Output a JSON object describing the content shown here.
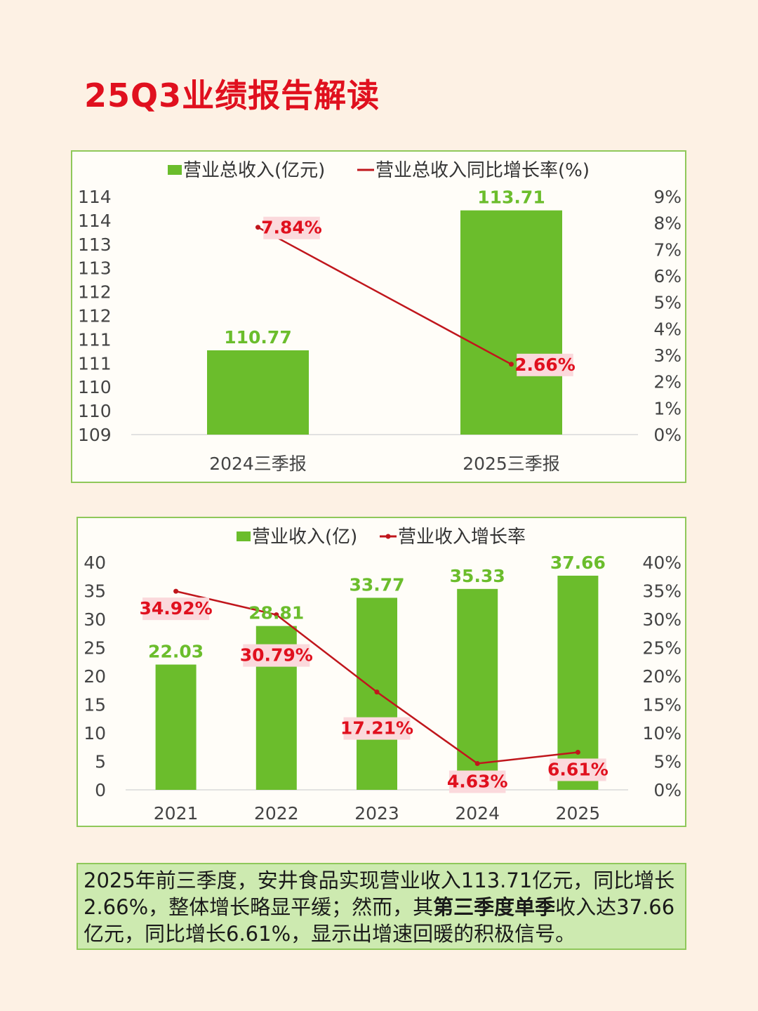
{
  "page": {
    "title": "25Q3业绩报告解读"
  },
  "colors": {
    "bar": "#6bbd2c",
    "line": "#c0161c",
    "bar_label": "#6bbd2c",
    "line_label": "#e0101e",
    "line_label_bg": "#fbd9dc",
    "title": "#e0101e"
  },
  "chart_data": [
    {
      "type": "bar",
      "legend": [
        "营业总收入(亿元)",
        "营业总收入同比增长率(%)"
      ],
      "categories": [
        "2024三季报",
        "2025三季报"
      ],
      "series": [
        {
          "name": "营业总收入(亿元)",
          "type": "bar",
          "values": [
            110.77,
            113.71
          ],
          "labels": [
            "110.77",
            "113.71"
          ]
        },
        {
          "name": "营业总收入同比增长率(%)",
          "type": "line",
          "values": [
            7.84,
            2.66
          ],
          "labels": [
            "7.84%",
            "2.66%"
          ]
        }
      ],
      "y_left": {
        "ticks": [
          "114",
          "114",
          "113",
          "113",
          "112",
          "112",
          "111",
          "111",
          "110",
          "110",
          "109"
        ],
        "ylim": [
          109,
          114
        ]
      },
      "y_right": {
        "ticks": [
          "9%",
          "8%",
          "7%",
          "6%",
          "5%",
          "4%",
          "3%",
          "2%",
          "1%",
          "0%"
        ],
        "ylim": [
          0,
          9
        ]
      },
      "grid": false,
      "legend_position": "top"
    },
    {
      "type": "bar",
      "legend": [
        "营业收入(亿)",
        "营业收入增长率"
      ],
      "categories": [
        "2021",
        "2022",
        "2023",
        "2024",
        "2025"
      ],
      "series": [
        {
          "name": "营业收入(亿)",
          "type": "bar",
          "values": [
            22.03,
            28.81,
            33.77,
            35.33,
            37.66
          ],
          "labels": [
            "22.03",
            "28.81",
            "33.77",
            "35.33",
            "37.66"
          ]
        },
        {
          "name": "营业收入增长率",
          "type": "line",
          "values": [
            34.92,
            30.79,
            17.21,
            4.63,
            6.61
          ],
          "labels": [
            "34.92%",
            "30.79%",
            "17.21%",
            "4.63%",
            "6.61%"
          ]
        }
      ],
      "y_left": {
        "ticks": [
          "40",
          "35",
          "30",
          "25",
          "20",
          "15",
          "10",
          "5",
          "0"
        ],
        "ylim": [
          0,
          40
        ]
      },
      "y_right": {
        "ticks": [
          "40%",
          "35%",
          "30%",
          "25%",
          "20%",
          "15%",
          "10%",
          "5%",
          "0%"
        ],
        "ylim": [
          0,
          40
        ]
      },
      "grid": false,
      "legend_position": "top"
    }
  ],
  "summary": {
    "part1": "2025年前三季度，安井食品实现营业收入113.71亿元，同比增长2.66%，整体增长略显平缓；然而，其",
    "bold": "第三季度单季",
    "part2": "收入达37.66亿元，同比增长6.61%，显示出增速回暖的积极信号。"
  }
}
